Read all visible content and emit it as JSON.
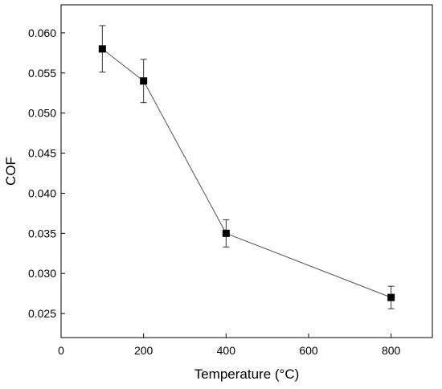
{
  "chart_data": {
    "type": "scatter",
    "title": "",
    "xlabel": "Temperature (°C)",
    "ylabel": "COF",
    "xlim": [
      0,
      900
    ],
    "ylim": [
      0.022,
      0.0635
    ],
    "xticks": [
      0,
      200,
      400,
      600,
      800
    ],
    "xtick_labels": [
      "0",
      "200",
      "400",
      "600",
      "800"
    ],
    "yticks": [
      0.025,
      0.03,
      0.035,
      0.04,
      0.045,
      0.05,
      0.055,
      0.06
    ],
    "ytick_labels": [
      "0.025",
      "0.030",
      "0.035",
      "0.040",
      "0.045",
      "0.050",
      "0.055",
      "0.060"
    ],
    "grid": false,
    "marker": "square",
    "connected": true,
    "series": [
      {
        "x": [
          100,
          200,
          400,
          800
        ],
        "y": [
          0.058,
          0.054,
          0.035,
          0.027
        ],
        "error": [
          0.0029,
          0.0027,
          0.0017,
          0.0014
        ]
      }
    ],
    "colors": {
      "marker": "#000000",
      "line": "#555555",
      "axis": "#000000",
      "errorbar": "#333333"
    }
  }
}
